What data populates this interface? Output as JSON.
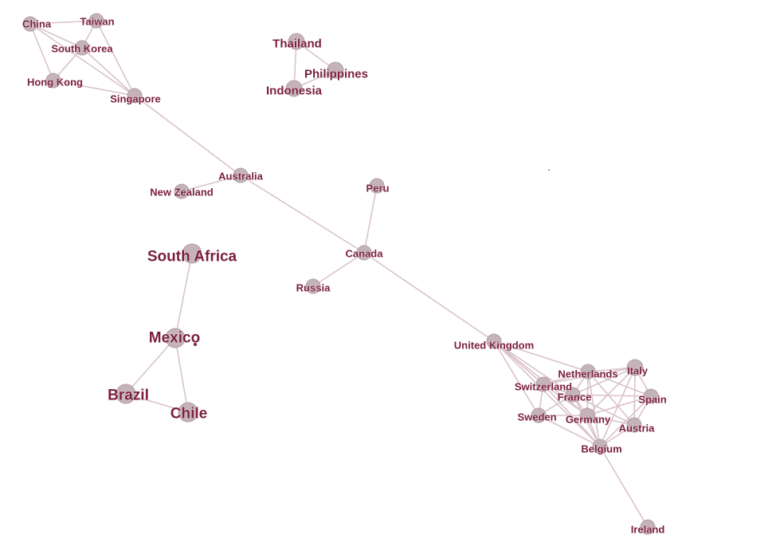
{
  "graph": {
    "node_color": "#c4b3b9",
    "edge_color": "#d9c3ca",
    "label_color": "#7a1f3d",
    "nodes": [
      {
        "id": "china",
        "label": "China"
      },
      {
        "id": "taiwan",
        "label": "Taiwan"
      },
      {
        "id": "south_korea",
        "label": "South Korea"
      },
      {
        "id": "hong_kong",
        "label": "Hong Kong"
      },
      {
        "id": "singapore",
        "label": "Singapore"
      },
      {
        "id": "thailand",
        "label": "Thailand"
      },
      {
        "id": "philippines",
        "label": "Philippines"
      },
      {
        "id": "indonesia",
        "label": "Indonesia"
      },
      {
        "id": "australia",
        "label": "Australia"
      },
      {
        "id": "new_zealand",
        "label": "New Zealand"
      },
      {
        "id": "peru",
        "label": "Peru"
      },
      {
        "id": "canada",
        "label": "Canada"
      },
      {
        "id": "russia",
        "label": "Russia"
      },
      {
        "id": "south_africa",
        "label": "South Africa"
      },
      {
        "id": "mexico",
        "label": "Mexico"
      },
      {
        "id": "brazil",
        "label": "Brazil"
      },
      {
        "id": "chile",
        "label": "Chile"
      },
      {
        "id": "united_kingdom",
        "label": "United Kingdom"
      },
      {
        "id": "netherlands",
        "label": "Netherlands"
      },
      {
        "id": "italy",
        "label": "Italy"
      },
      {
        "id": "switzerland",
        "label": "Switzerland"
      },
      {
        "id": "france",
        "label": "France"
      },
      {
        "id": "spain",
        "label": "Spain"
      },
      {
        "id": "sweden",
        "label": "Sweden"
      },
      {
        "id": "germany",
        "label": "Germany"
      },
      {
        "id": "austria",
        "label": "Austria"
      },
      {
        "id": "belgium",
        "label": "Belgium"
      },
      {
        "id": "ireland",
        "label": "Ireland"
      }
    ],
    "edges": [
      [
        "china",
        "taiwan"
      ],
      [
        "china",
        "south_korea"
      ],
      [
        "china",
        "hong_kong"
      ],
      [
        "china",
        "singapore"
      ],
      [
        "taiwan",
        "south_korea"
      ],
      [
        "taiwan",
        "singapore"
      ],
      [
        "south_korea",
        "hong_kong"
      ],
      [
        "south_korea",
        "singapore"
      ],
      [
        "hong_kong",
        "singapore"
      ],
      [
        "singapore",
        "australia"
      ],
      [
        "thailand",
        "philippines"
      ],
      [
        "thailand",
        "indonesia"
      ],
      [
        "philippines",
        "indonesia"
      ],
      [
        "australia",
        "new_zealand"
      ],
      [
        "australia",
        "canada"
      ],
      [
        "peru",
        "canada"
      ],
      [
        "canada",
        "russia"
      ],
      [
        "canada",
        "united_kingdom"
      ],
      [
        "south_africa",
        "mexico"
      ],
      [
        "mexico",
        "brazil"
      ],
      [
        "mexico",
        "chile"
      ],
      [
        "brazil",
        "chile"
      ],
      [
        "united_kingdom",
        "switzerland"
      ],
      [
        "united_kingdom",
        "sweden"
      ],
      [
        "united_kingdom",
        "germany"
      ],
      [
        "united_kingdom",
        "netherlands"
      ],
      [
        "united_kingdom",
        "belgium"
      ],
      [
        "united_kingdom",
        "france"
      ],
      [
        "netherlands",
        "italy"
      ],
      [
        "netherlands",
        "switzerland"
      ],
      [
        "netherlands",
        "france"
      ],
      [
        "netherlands",
        "germany"
      ],
      [
        "netherlands",
        "belgium"
      ],
      [
        "netherlands",
        "spain"
      ],
      [
        "netherlands",
        "austria"
      ],
      [
        "italy",
        "spain"
      ],
      [
        "italy",
        "austria"
      ],
      [
        "italy",
        "france"
      ],
      [
        "italy",
        "switzerland"
      ],
      [
        "italy",
        "belgium"
      ],
      [
        "italy",
        "germany"
      ],
      [
        "switzerland",
        "france"
      ],
      [
        "switzerland",
        "sweden"
      ],
      [
        "switzerland",
        "germany"
      ],
      [
        "switzerland",
        "belgium"
      ],
      [
        "france",
        "germany"
      ],
      [
        "france",
        "belgium"
      ],
      [
        "france",
        "spain"
      ],
      [
        "france",
        "sweden"
      ],
      [
        "france",
        "austria"
      ],
      [
        "spain",
        "austria"
      ],
      [
        "spain",
        "belgium"
      ],
      [
        "spain",
        "germany"
      ],
      [
        "sweden",
        "germany"
      ],
      [
        "sweden",
        "belgium"
      ],
      [
        "germany",
        "austria"
      ],
      [
        "germany",
        "belgium"
      ],
      [
        "austria",
        "belgium"
      ],
      [
        "belgium",
        "ireland"
      ]
    ]
  }
}
